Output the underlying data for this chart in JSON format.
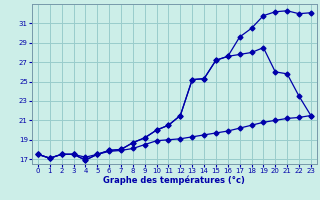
{
  "xlabel": "Graphe des températures (°c)",
  "bg_color": "#cceee8",
  "line_color": "#0000aa",
  "grid_color": "#99cccc",
  "x_min": -0.5,
  "x_max": 23.5,
  "y_min": 16.5,
  "y_max": 33.0,
  "y_ticks": [
    17,
    19,
    21,
    23,
    25,
    27,
    29,
    31
  ],
  "x_ticks": [
    0,
    1,
    2,
    3,
    4,
    5,
    6,
    7,
    8,
    9,
    10,
    11,
    12,
    13,
    14,
    15,
    16,
    17,
    18,
    19,
    20,
    21,
    22,
    23
  ],
  "line1_y": [
    17.5,
    17.1,
    17.5,
    17.5,
    17.2,
    17.5,
    17.8,
    17.9,
    18.1,
    18.5,
    18.9,
    19.0,
    19.1,
    19.3,
    19.5,
    19.7,
    19.9,
    20.2,
    20.5,
    20.8,
    21.0,
    21.2,
    21.3,
    21.5
  ],
  "line2_y": [
    17.5,
    17.1,
    17.5,
    17.5,
    16.9,
    17.5,
    17.9,
    18.0,
    18.7,
    19.2,
    20.0,
    20.5,
    21.5,
    25.2,
    25.3,
    27.2,
    27.6,
    27.8,
    28.0,
    28.5,
    26.0,
    25.8,
    23.5,
    21.5
  ],
  "line3_y": [
    17.5,
    17.1,
    17.5,
    17.5,
    16.9,
    17.5,
    17.9,
    18.0,
    18.7,
    19.2,
    20.0,
    20.5,
    21.5,
    25.2,
    25.3,
    27.2,
    27.6,
    29.6,
    30.5,
    31.8,
    32.2,
    32.3,
    32.0,
    32.1
  ],
  "marker": "D",
  "marker_size": 2.5,
  "line_width": 0.9,
  "tick_fontsize": 5.0,
  "xlabel_fontsize": 6.0
}
